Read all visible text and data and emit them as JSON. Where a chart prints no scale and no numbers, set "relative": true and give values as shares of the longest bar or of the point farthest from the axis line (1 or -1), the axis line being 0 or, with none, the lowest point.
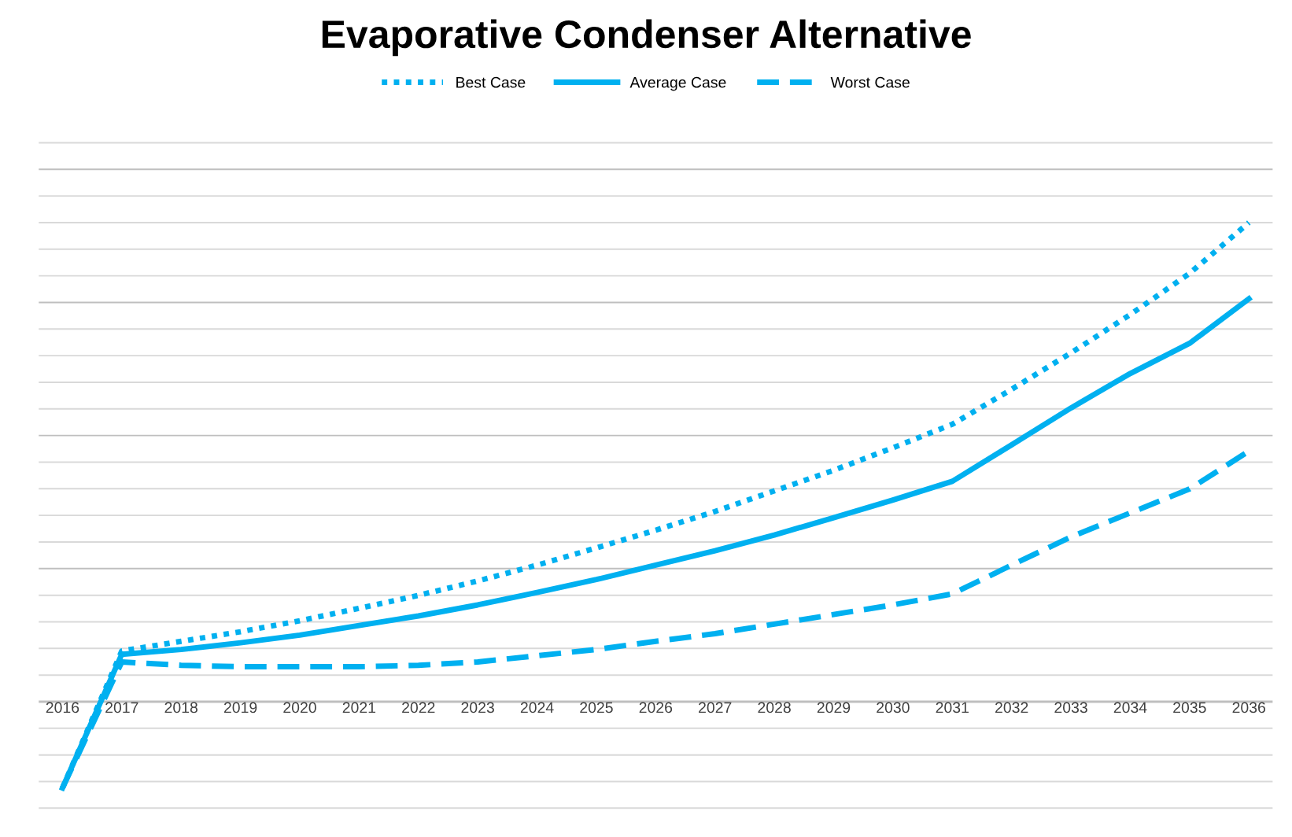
{
  "chart_data": {
    "type": "line",
    "title": "Evaporative Condenser Alternative",
    "relative": true,
    "legend": "top",
    "grid": "y",
    "categories": [
      "2016",
      "2017",
      "2018",
      "2019",
      "2020",
      "2021",
      "2022",
      "2023",
      "2024",
      "2025",
      "2026",
      "2027",
      "2028",
      "2029",
      "2030",
      "2031",
      "2032",
      "2033",
      "2034",
      "2035",
      "2036"
    ],
    "series": [
      {
        "name": "Best Case",
        "color": "#00b0f0",
        "line_style": "dotted",
        "values": [
          -0.18,
          0.106,
          0.126,
          0.146,
          0.169,
          0.195,
          0.222,
          0.252,
          0.285,
          0.321,
          0.358,
          0.397,
          0.44,
          0.483,
          0.53,
          0.579,
          0.652,
          0.728,
          0.808,
          0.894,
          1
        ]
      },
      {
        "name": "Average Case",
        "color": "#00b0f0",
        "line_style": "solid",
        "values": [
          -0.18,
          0.099,
          0.109,
          0.123,
          0.139,
          0.159,
          0.179,
          0.202,
          0.228,
          0.255,
          0.285,
          0.315,
          0.348,
          0.384,
          0.421,
          0.46,
          0.536,
          0.613,
          0.685,
          0.748,
          0.841
        ]
      },
      {
        "name": "Worst Case",
        "color": "#00b0f0",
        "line_style": "dashed",
        "values": [
          -0.18,
          0.083,
          0.076,
          0.073,
          0.073,
          0.073,
          0.076,
          0.083,
          0.096,
          0.109,
          0.126,
          0.142,
          0.162,
          0.182,
          0.202,
          0.225,
          0.285,
          0.344,
          0.394,
          0.444,
          0.523
        ]
      }
    ]
  }
}
